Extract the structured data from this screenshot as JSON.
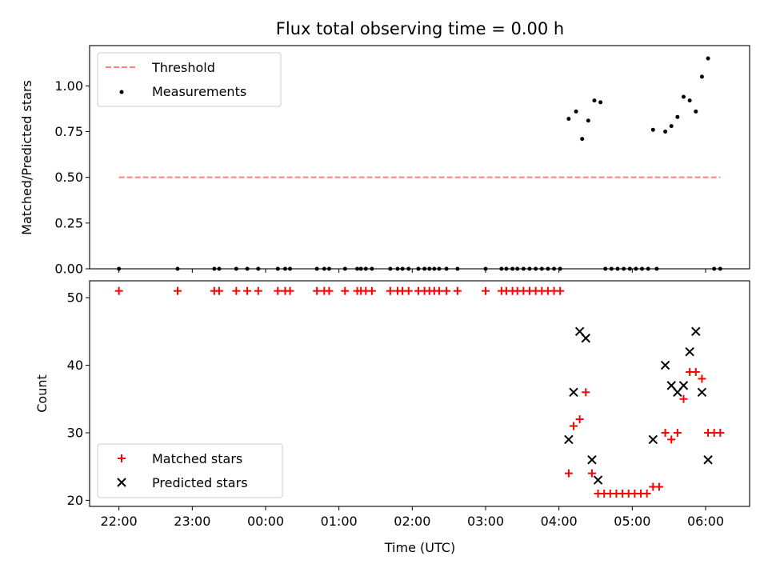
{
  "chart_data": [
    {
      "type": "line+scatter",
      "title": "Flux total observing time = 0.00 h",
      "xlabel": "",
      "ylabel": "Matched/Predicted stars",
      "xlim": [
        "21:36",
        "06:36"
      ],
      "ylim": [
        0,
        1.22
      ],
      "yticks": [
        "0.00",
        "0.25",
        "0.50",
        "0.75",
        "1.00"
      ],
      "legend": {
        "placement": "top-left",
        "entries": [
          "Threshold",
          "Measurements"
        ]
      },
      "threshold": {
        "name": "Threshold",
        "value": 0.5,
        "x_start": "22:00",
        "x_end": "06:12",
        "color": "#ff7f7f",
        "style": "dashed"
      },
      "measurements": {
        "name": "Measurements",
        "color": "#000000",
        "points": [
          [
            "22:00",
            0
          ],
          [
            "22:48",
            0
          ],
          [
            "23:18",
            0
          ],
          [
            "23:22",
            0
          ],
          [
            "23:36",
            0
          ],
          [
            "23:45",
            0
          ],
          [
            "23:54",
            0
          ],
          [
            "00:10",
            0
          ],
          [
            "00:16",
            0
          ],
          [
            "00:20",
            0
          ],
          [
            "00:42",
            0
          ],
          [
            "00:48",
            0
          ],
          [
            "00:52",
            0
          ],
          [
            "01:05",
            0
          ],
          [
            "01:15",
            0
          ],
          [
            "01:18",
            0
          ],
          [
            "01:22",
            0
          ],
          [
            "01:27",
            0
          ],
          [
            "01:42",
            0
          ],
          [
            "01:48",
            0
          ],
          [
            "01:52",
            0
          ],
          [
            "01:57",
            0
          ],
          [
            "02:05",
            0
          ],
          [
            "02:10",
            0
          ],
          [
            "02:14",
            0
          ],
          [
            "02:18",
            0
          ],
          [
            "02:22",
            0
          ],
          [
            "02:28",
            0
          ],
          [
            "02:37",
            0
          ],
          [
            "03:00",
            0
          ],
          [
            "03:13",
            0
          ],
          [
            "03:17",
            0
          ],
          [
            "03:22",
            0
          ],
          [
            "03:26",
            0
          ],
          [
            "03:31",
            0
          ],
          [
            "03:36",
            0
          ],
          [
            "03:41",
            0
          ],
          [
            "03:46",
            0
          ],
          [
            "03:51",
            0
          ],
          [
            "03:56",
            0
          ],
          [
            "04:01",
            0
          ],
          [
            "04:08",
            0.82
          ],
          [
            "04:14",
            0.86
          ],
          [
            "04:19",
            0.71
          ],
          [
            "04:24",
            0.81
          ],
          [
            "04:29",
            0.92
          ],
          [
            "04:34",
            0.91
          ],
          [
            "04:38",
            0
          ],
          [
            "04:43",
            0
          ],
          [
            "04:48",
            0
          ],
          [
            "04:53",
            0
          ],
          [
            "04:58",
            0
          ],
          [
            "05:03",
            0
          ],
          [
            "05:08",
            0
          ],
          [
            "05:13",
            0
          ],
          [
            "05:17",
            0.76
          ],
          [
            "05:20",
            0
          ],
          [
            "05:27",
            0.75
          ],
          [
            "05:32",
            0.78
          ],
          [
            "05:37",
            0.83
          ],
          [
            "05:42",
            0.94
          ],
          [
            "05:47",
            0.92
          ],
          [
            "05:52",
            0.86
          ],
          [
            "05:57",
            1.05
          ],
          [
            "06:02",
            1.15
          ],
          [
            "06:07",
            0
          ],
          [
            "06:12",
            0
          ]
        ]
      }
    },
    {
      "type": "scatter",
      "title": "",
      "xlabel": "Time (UTC)",
      "ylabel": "Count",
      "xlim": [
        "21:36",
        "06:36"
      ],
      "ylim": [
        19.1,
        52.5
      ],
      "xticks": [
        "22:00",
        "23:00",
        "00:00",
        "01:00",
        "02:00",
        "03:00",
        "04:00",
        "05:00",
        "06:00"
      ],
      "yticks": [
        "20",
        "30",
        "40",
        "50"
      ],
      "legend": {
        "placement": "bottom-left",
        "entries": [
          "Matched stars",
          "Predicted stars"
        ]
      },
      "series": [
        {
          "name": "Matched stars",
          "marker": "plus",
          "color": "#ff0000",
          "points": [
            [
              "22:00",
              51
            ],
            [
              "22:48",
              51
            ],
            [
              "23:18",
              51
            ],
            [
              "23:22",
              51
            ],
            [
              "23:36",
              51
            ],
            [
              "23:45",
              51
            ],
            [
              "23:54",
              51
            ],
            [
              "00:10",
              51
            ],
            [
              "00:16",
              51
            ],
            [
              "00:20",
              51
            ],
            [
              "00:42",
              51
            ],
            [
              "00:48",
              51
            ],
            [
              "00:52",
              51
            ],
            [
              "01:05",
              51
            ],
            [
              "01:15",
              51
            ],
            [
              "01:18",
              51
            ],
            [
              "01:22",
              51
            ],
            [
              "01:27",
              51
            ],
            [
              "01:42",
              51
            ],
            [
              "01:48",
              51
            ],
            [
              "01:52",
              51
            ],
            [
              "01:57",
              51
            ],
            [
              "02:05",
              51
            ],
            [
              "02:10",
              51
            ],
            [
              "02:14",
              51
            ],
            [
              "02:18",
              51
            ],
            [
              "02:22",
              51
            ],
            [
              "02:28",
              51
            ],
            [
              "02:37",
              51
            ],
            [
              "03:00",
              51
            ],
            [
              "03:13",
              51
            ],
            [
              "03:17",
              51
            ],
            [
              "03:22",
              51
            ],
            [
              "03:26",
              51
            ],
            [
              "03:31",
              51
            ],
            [
              "03:36",
              51
            ],
            [
              "03:41",
              51
            ],
            [
              "03:46",
              51
            ],
            [
              "03:51",
              51
            ],
            [
              "03:56",
              51
            ],
            [
              "04:01",
              51
            ],
            [
              "04:08",
              24
            ],
            [
              "04:12",
              31
            ],
            [
              "04:17",
              32
            ],
            [
              "04:22",
              36
            ],
            [
              "04:27",
              24
            ],
            [
              "04:32",
              21
            ],
            [
              "04:37",
              21
            ],
            [
              "04:42",
              21
            ],
            [
              "04:47",
              21
            ],
            [
              "04:52",
              21
            ],
            [
              "04:57",
              21
            ],
            [
              "05:02",
              21
            ],
            [
              "05:07",
              21
            ],
            [
              "05:12",
              21
            ],
            [
              "05:17",
              22
            ],
            [
              "05:22",
              22
            ],
            [
              "05:27",
              30
            ],
            [
              "05:32",
              29
            ],
            [
              "05:37",
              30
            ],
            [
              "05:42",
              35
            ],
            [
              "05:47",
              39
            ],
            [
              "05:52",
              39
            ],
            [
              "05:57",
              38
            ],
            [
              "06:02",
              30
            ],
            [
              "06:07",
              30
            ],
            [
              "06:12",
              30
            ]
          ]
        },
        {
          "name": "Predicted stars",
          "marker": "x",
          "color": "#000000",
          "points": [
            [
              "04:08",
              29
            ],
            [
              "04:12",
              36
            ],
            [
              "04:17",
              45
            ],
            [
              "04:22",
              44
            ],
            [
              "04:27",
              26
            ],
            [
              "04:32",
              23
            ],
            [
              "05:17",
              29
            ],
            [
              "05:27",
              40
            ],
            [
              "05:32",
              37
            ],
            [
              "05:37",
              36
            ],
            [
              "05:42",
              37
            ],
            [
              "05:47",
              42
            ],
            [
              "05:52",
              45
            ],
            [
              "05:57",
              36
            ],
            [
              "06:02",
              26
            ]
          ]
        }
      ]
    }
  ]
}
